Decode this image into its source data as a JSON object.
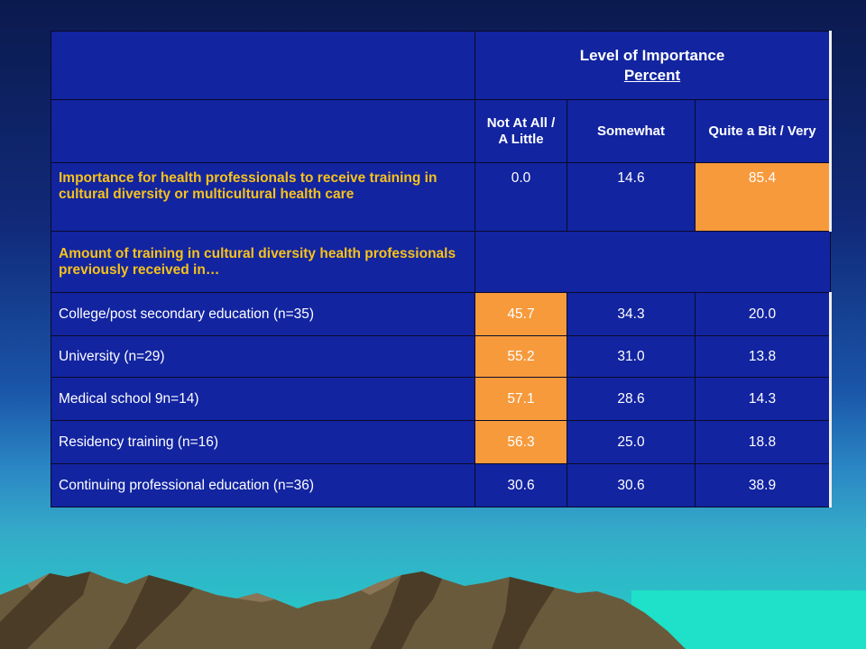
{
  "table": {
    "title": "Level of Importance",
    "subtitle": "Percent",
    "columns": [
      "Not At All / A Little",
      "Somewhat",
      "Quite a Bit / Very"
    ],
    "importance_row": {
      "label": "Importance for health professionals to receive training in cultural diversity or multicultural health care",
      "values": [
        "0.0",
        "14.6",
        "85.4"
      ]
    },
    "section_label": "Amount of training in cultural diversity health professionals previously received in…",
    "rows": [
      {
        "label": "College/post secondary education (n=35)",
        "values": [
          "45.7",
          "34.3",
          "20.0"
        ]
      },
      {
        "label": "University (n=29)",
        "values": [
          "55.2",
          "31.0",
          "13.8"
        ]
      },
      {
        "label": "Medical school 9n=14)",
        "values": [
          "57.1",
          "28.6",
          "14.3"
        ]
      },
      {
        "label": "Residency training (n=16)",
        "values": [
          "56.3",
          "25.0",
          "18.8"
        ]
      },
      {
        "label": "Continuing professional education (n=36)",
        "values": [
          "30.6",
          "30.6",
          "38.9"
        ]
      }
    ]
  },
  "colors": {
    "cell_blue": "#1224a0",
    "highlight_orange": "#f79a3c",
    "label_yellow": "#f7c21a"
  }
}
